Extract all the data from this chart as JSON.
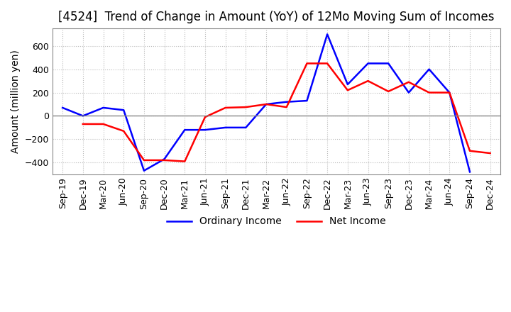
{
  "title": "[4524]  Trend of Change in Amount (YoY) of 12Mo Moving Sum of Incomes",
  "ylabel": "Amount (million yen)",
  "x_labels": [
    "Sep-19",
    "Dec-19",
    "Mar-20",
    "Jun-20",
    "Sep-20",
    "Dec-20",
    "Mar-21",
    "Jun-21",
    "Sep-21",
    "Dec-21",
    "Mar-22",
    "Jun-22",
    "Sep-22",
    "Dec-22",
    "Mar-23",
    "Jun-23",
    "Sep-23",
    "Dec-23",
    "Mar-24",
    "Jun-24",
    "Sep-24",
    "Dec-24"
  ],
  "ordinary_income": [
    70,
    0,
    70,
    50,
    -470,
    -370,
    -120,
    -120,
    -100,
    -100,
    100,
    120,
    130,
    700,
    270,
    450,
    450,
    200,
    400,
    200,
    -480,
    null
  ],
  "net_income": [
    null,
    -70,
    -70,
    -130,
    -380,
    -380,
    -390,
    -10,
    70,
    75,
    100,
    75,
    450,
    450,
    220,
    300,
    210,
    290,
    200,
    200,
    -300,
    -320
  ],
  "ylim": [
    -500,
    750
  ],
  "yticks": [
    -400,
    -200,
    0,
    200,
    400,
    600
  ],
  "ordinary_color": "#0000FF",
  "net_color": "#FF0000",
  "grid_color": "#BBBBBB",
  "zero_line_color": "#888888",
  "background_color": "#FFFFFF",
  "title_fontsize": 12,
  "axis_fontsize": 10,
  "tick_fontsize": 9,
  "line_width": 1.8
}
